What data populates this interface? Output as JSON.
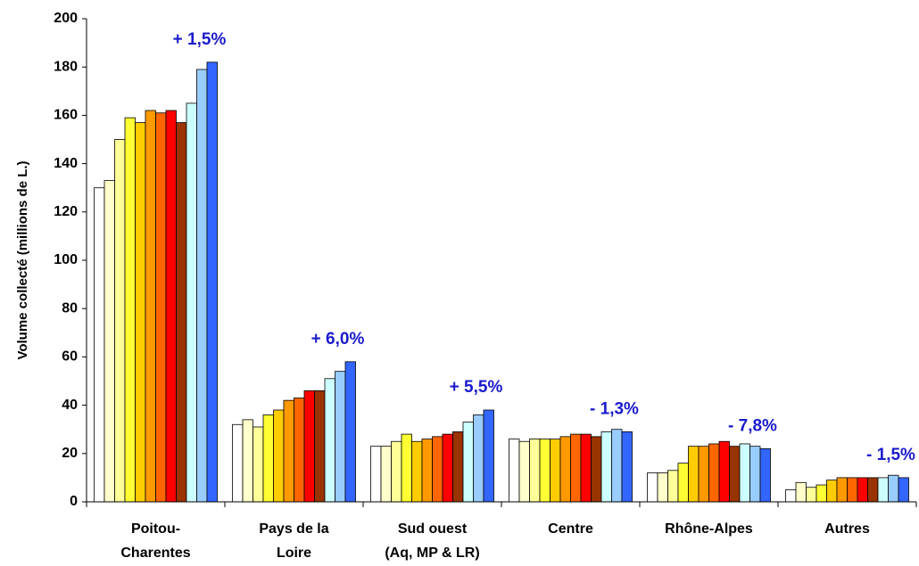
{
  "chart_data": {
    "type": "bar",
    "y_label": "Volume collecté (millions de L.)",
    "categories": [
      [
        "Poitou-",
        "Charentes"
      ],
      [
        "Pays de la",
        "Loire"
      ],
      [
        "Sud ouest",
        "(Aq, MP & LR)"
      ],
      [
        "Centre"
      ],
      [
        "Rhône-Alpes"
      ],
      [
        "Autres"
      ]
    ],
    "series": [
      {
        "color": "#ffffff",
        "values": [
          130,
          32,
          23,
          26,
          12,
          5
        ]
      },
      {
        "color": "#ffffcc",
        "values": [
          133,
          34,
          23,
          25,
          12,
          8
        ]
      },
      {
        "color": "#ffff99",
        "values": [
          150,
          31,
          25,
          26,
          13,
          6
        ]
      },
      {
        "color": "#ffff33",
        "values": [
          159,
          36,
          28,
          26,
          16,
          7
        ]
      },
      {
        "color": "#ffcc00",
        "values": [
          157,
          38,
          25,
          26,
          23,
          9
        ]
      },
      {
        "color": "#ff9900",
        "values": [
          162,
          42,
          26,
          27,
          23,
          10
        ]
      },
      {
        "color": "#ff6600",
        "values": [
          161,
          43,
          27,
          28,
          24,
          10
        ]
      },
      {
        "color": "#ff0000",
        "values": [
          162,
          46,
          28,
          28,
          25,
          10
        ]
      },
      {
        "color": "#993300",
        "values": [
          157,
          46,
          29,
          27,
          23,
          10
        ]
      },
      {
        "color": "#ccffff",
        "values": [
          165,
          51,
          33,
          29,
          24,
          10
        ]
      },
      {
        "color": "#99ccff",
        "values": [
          179,
          54,
          36,
          30,
          23,
          11
        ]
      },
      {
        "color": "#3366ff",
        "values": [
          182,
          58,
          38,
          29,
          22,
          10
        ]
      }
    ],
    "annotations": [
      "+ 1,5%",
      "+ 6,0%",
      "+ 5,5%",
      "- 1,3%",
      "- 7,8%",
      "- 1,5%"
    ],
    "ylim": [
      0,
      200
    ],
    "yticks": [
      0,
      20,
      40,
      60,
      80,
      100,
      120,
      140,
      160,
      180,
      200
    ]
  }
}
